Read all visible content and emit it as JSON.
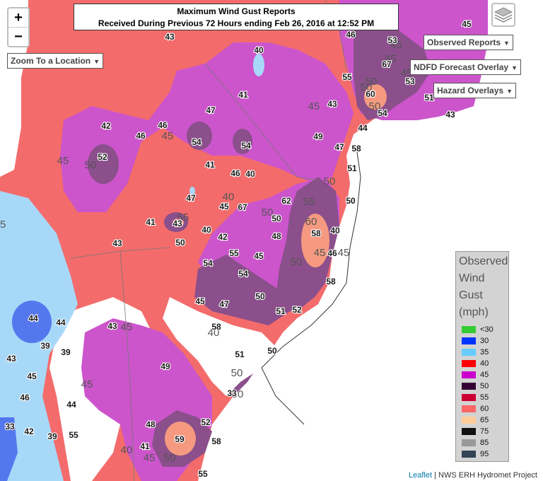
{
  "title": {
    "line1": "Maximum Wind Gust Reports",
    "line2": "Received During Previous 72 Hours ending Feb 26, 2016 at 12:52 PM"
  },
  "zoom": {
    "in": "+",
    "out": "−"
  },
  "controls": {
    "zoom_to_location": "Zoom To a Location",
    "observed_reports": "Observed Reports",
    "ndfd_overlay": "NDFD Forecast Overlay",
    "hazard_overlays": "Hazard Overlays"
  },
  "legend": {
    "title_lines": [
      "Observed",
      "Wind",
      "Gust",
      "(mph)"
    ],
    "items": [
      {
        "label": "<30",
        "color": "#33cc33"
      },
      {
        "label": "30",
        "color": "#0033ff"
      },
      {
        "label": "35",
        "color": "#66ccff"
      },
      {
        "label": "40",
        "color": "#ff0000"
      },
      {
        "label": "45",
        "color": "#cc00cc"
      },
      {
        "label": "50",
        "color": "#330033"
      },
      {
        "label": "55",
        "color": "#cc0033"
      },
      {
        "label": "60",
        "color": "#ff6666"
      },
      {
        "label": "65",
        "color": "#ffcc99"
      },
      {
        "label": "75",
        "color": "#111111"
      },
      {
        "label": "85",
        "color": "#999999"
      },
      {
        "label": "95",
        "color": "#334455"
      }
    ]
  },
  "attribution": {
    "link": "Leaflet",
    "rest": " | NWS ERH Hydromet Project"
  },
  "station_reports": [
    "43",
    "40",
    "41",
    "42",
    "46",
    "47",
    "54",
    "54",
    "52",
    "46",
    "41",
    "46",
    "40",
    "47",
    "45",
    "67",
    "43",
    "41",
    "40",
    "42",
    "43",
    "50",
    "54",
    "50",
    "62",
    "48",
    "58",
    "40",
    "46",
    "45",
    "55",
    "54",
    "50",
    "51",
    "52",
    "45",
    "47",
    "58",
    "51",
    "50",
    "33",
    "44",
    "44",
    "43",
    "39",
    "39",
    "43",
    "45",
    "46",
    "44",
    "33",
    "42",
    "39",
    "55",
    "49",
    "48",
    "52",
    "59",
    "58",
    "41",
    "55",
    "58",
    "53",
    "67",
    "55",
    "60",
    "53",
    "51",
    "54",
    "43",
    "44",
    "49",
    "47",
    "58",
    "51",
    "50",
    "43",
    "45",
    "46"
  ],
  "contour_labels": [
    "45",
    "50",
    "45",
    "45",
    "55",
    "40",
    "50",
    "60",
    "50",
    "45",
    "45",
    "40",
    "45",
    "50",
    "45",
    "45",
    "50",
    "40",
    "45",
    "50",
    "50",
    "45",
    "45",
    "45",
    "50",
    "50",
    "45",
    "50",
    "45",
    "55"
  ]
}
